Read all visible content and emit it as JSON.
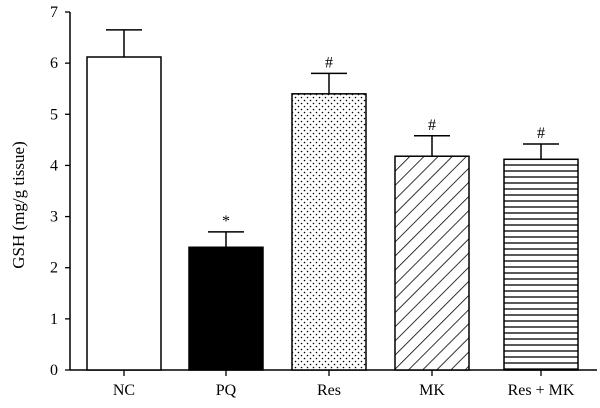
{
  "chart_data": {
    "type": "bar",
    "categories": [
      "NC",
      "PQ",
      "Res",
      "MK",
      "Res + MK"
    ],
    "values": [
      6.12,
      2.4,
      5.4,
      4.18,
      4.12
    ],
    "errors": [
      0.53,
      0.3,
      0.4,
      0.4,
      0.3
    ],
    "annotations": [
      "",
      "*",
      "#",
      "#",
      "#"
    ],
    "fills": [
      "blank",
      "solid-black",
      "dots",
      "diagonal-hatch",
      "horizontal-lines"
    ],
    "ylabel": "GSH (mg/g tissue)",
    "xlabel": "",
    "title": "",
    "ylim": [
      0,
      7
    ],
    "yticks": [
      0,
      1,
      2,
      3,
      4,
      5,
      6,
      7
    ],
    "grid": false,
    "colors": {
      "stroke": "#000000",
      "solid_fill": "#000000",
      "blank_fill": "#ffffff"
    }
  }
}
